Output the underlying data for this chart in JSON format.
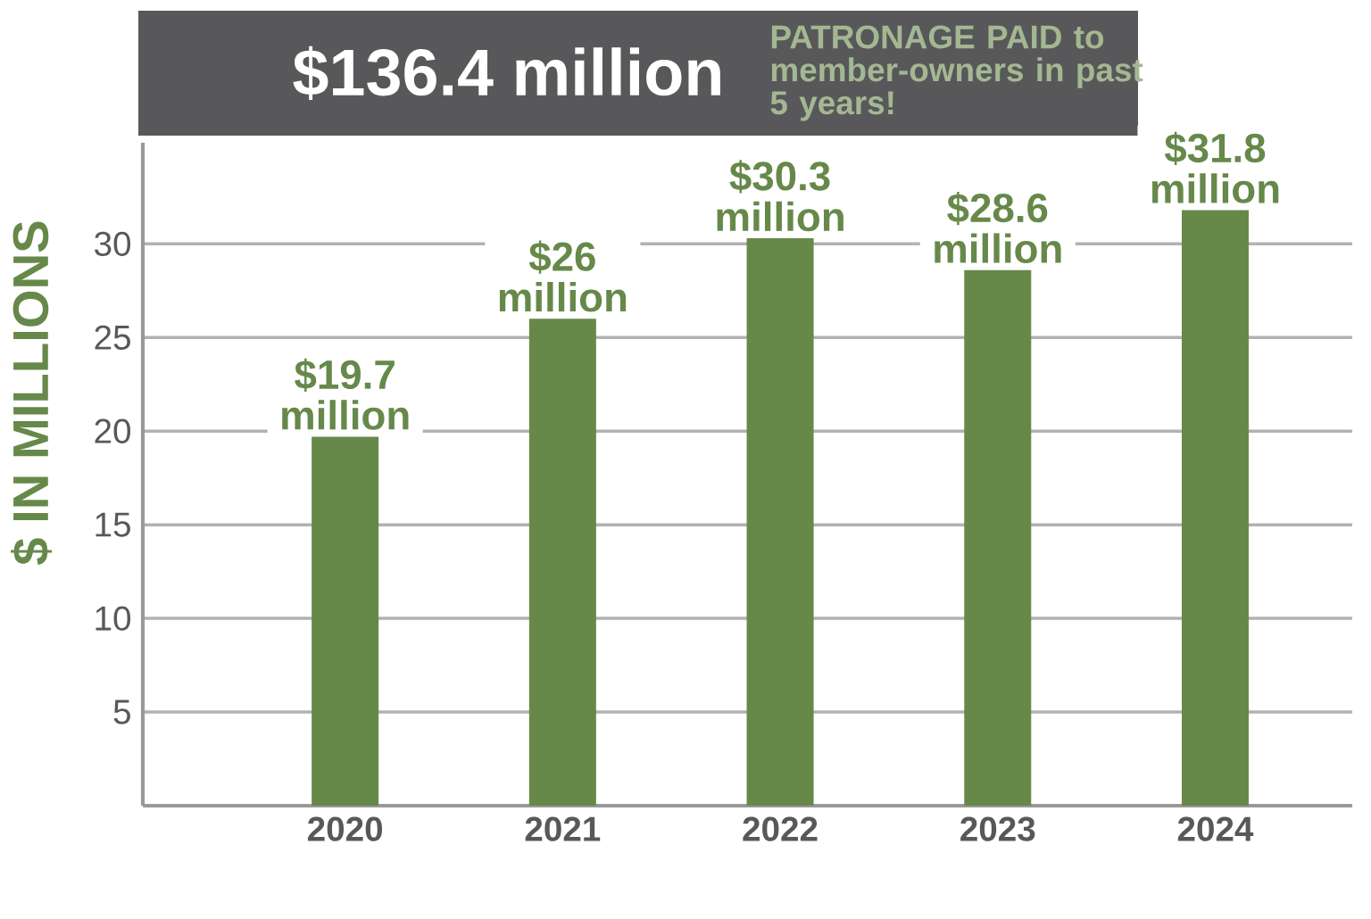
{
  "chart_data": {
    "type": "bar",
    "title": "$136.4 million",
    "subtitle": "PATRONAGE PAID to member-owners in past 5 years!",
    "ylabel": "$ IN MILLIONS",
    "categories": [
      "2020",
      "2021",
      "2022",
      "2023",
      "2024"
    ],
    "values": [
      19.7,
      26,
      30.3,
      28.6,
      31.8
    ],
    "value_labels": [
      "$19.7 million",
      "$26 million",
      "$30.3 million",
      "$28.6 million",
      "$31.8 million"
    ],
    "color": "#66894a",
    "ylim": [
      0,
      35.4
    ],
    "yticks": [
      5,
      10,
      15,
      20,
      25,
      30
    ],
    "grid": "y"
  }
}
